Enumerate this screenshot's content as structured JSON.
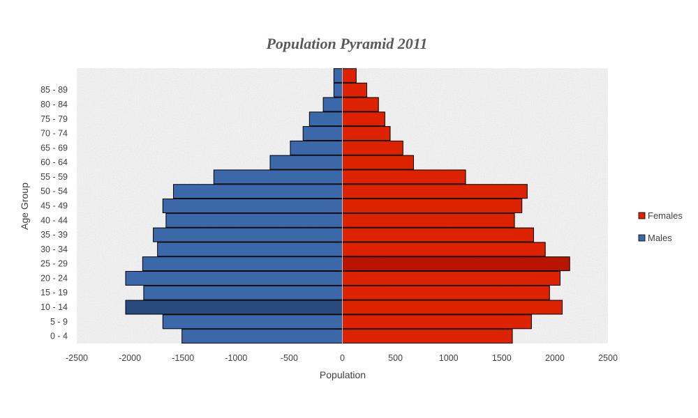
{
  "chart_data": {
    "type": "bar",
    "orientation": "horizontal",
    "title": "Population Pyramid 2011",
    "xlabel": "Population",
    "ylabel": "Age Group",
    "xlim": [
      -2500,
      2500
    ],
    "xticks": [
      -2500,
      -2000,
      -1500,
      -1000,
      -500,
      0,
      500,
      1000,
      1500,
      2000,
      2500
    ],
    "categories": [
      "0 - 4",
      "5 - 9",
      "10 - 14",
      "15 - 19",
      "20 - 24",
      "25 - 29",
      "30 - 34",
      "35 - 39",
      "40 - 44",
      "45 - 49",
      "50 - 54",
      "55 - 59",
      "60 - 64",
      "65 - 69",
      "70 - 74",
      "75 - 79",
      "80 - 84",
      "85 - 89",
      ""
    ],
    "series": [
      {
        "name": "Females",
        "color": "#dd2200",
        "highlight_color": "#b81500",
        "highlight_index": 5,
        "values": [
          1600,
          1780,
          2070,
          1950,
          2050,
          2140,
          1910,
          1800,
          1620,
          1690,
          1740,
          1160,
          670,
          570,
          450,
          400,
          340,
          230,
          130
        ]
      },
      {
        "name": "Males",
        "color": "#3a68a8",
        "highlight_color": "#284a7c",
        "highlight_index": 2,
        "values": [
          -1510,
          -1690,
          -2040,
          -1870,
          -2040,
          -1880,
          -1740,
          -1780,
          -1660,
          -1690,
          -1590,
          -1210,
          -680,
          -490,
          -370,
          -310,
          -180,
          -80,
          -80
        ]
      }
    ],
    "legend": {
      "position": "right"
    },
    "grid": false
  }
}
